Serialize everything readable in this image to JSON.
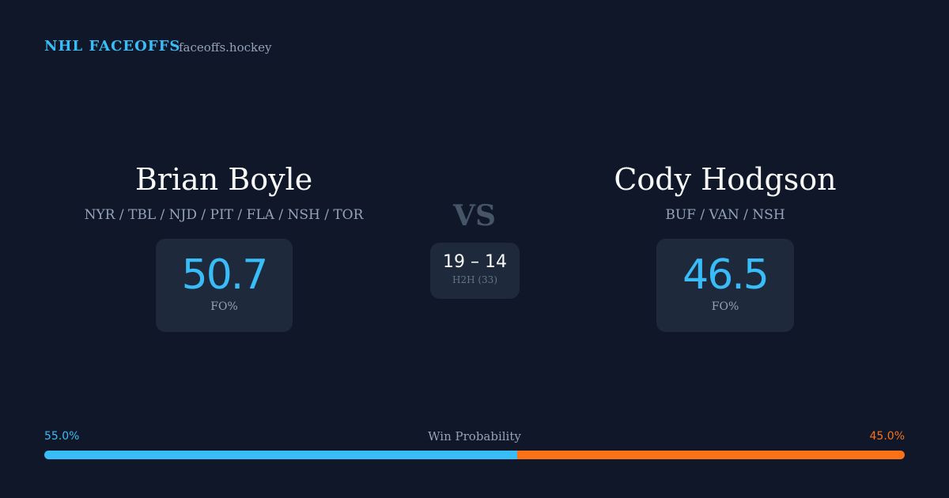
{
  "header": {
    "brand": "NHL FACEOFFS",
    "site": "faceoffs.hockey"
  },
  "players": [
    {
      "name": "Brian Boyle",
      "teams": "NYR / TBL / NJD / PIT / FLA / NSH / TOR",
      "fo_pct": 50.7,
      "fo_label": "FO%"
    },
    {
      "name": "Cody Hodgson",
      "teams": "BUF / VAN / NSH",
      "fo_pct": 46.5,
      "fo_label": "FO%"
    }
  ],
  "vs": "VS",
  "h2h": {
    "score": "19 – 14",
    "label": "H2H (33)"
  },
  "win_probability": {
    "title": "Win Probability",
    "left": {
      "value": 55.0,
      "label": "55.0%",
      "color": "#38bdf8"
    },
    "right": {
      "value": 45.0,
      "label": "45.0%",
      "color": "#f97316"
    }
  }
}
